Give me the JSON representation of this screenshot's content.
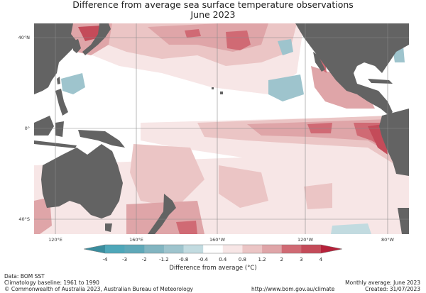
{
  "title": {
    "line1": "Difference from average sea surface temperature observations",
    "line2": "June 2023"
  },
  "map": {
    "region": "Pacific Ocean",
    "land_color": "#636363",
    "gridline_color": "#8a8a8a",
    "lat_labels": [
      "40°N",
      "0°",
      "40°S"
    ],
    "lon_labels": [
      "120°E",
      "160°E",
      "160°W",
      "120°W",
      "80°W"
    ],
    "lat_values": [
      40,
      0,
      -40
    ],
    "lon_values": [
      120,
      160,
      200,
      240,
      280
    ],
    "extent": {
      "lon_min": 110,
      "lon_max": 290,
      "lat_min": -47,
      "lat_max": 47
    },
    "features": [
      {
        "name": "el-nino-equatorial-warm-tongue",
        "anomaly_range": [
          1.2,
          4
        ],
        "lon": [
          200,
          282
        ],
        "lat": [
          -8,
          3
        ]
      },
      {
        "name": "peru-coast-warm-anomaly",
        "anomaly_range": [
          2,
          4
        ],
        "lon": [
          268,
          282
        ],
        "lat": [
          -10,
          2
        ]
      },
      {
        "name": "north-pacific-warm-band",
        "anomaly_range": [
          0.4,
          3
        ],
        "lon": [
          140,
          235
        ],
        "lat": [
          30,
          47
        ]
      },
      {
        "name": "sea-of-japan-warm",
        "anomaly_range": [
          2,
          4
        ],
        "lon": [
          128,
          145
        ],
        "lat": [
          36,
          45
        ]
      },
      {
        "name": "west-pacific-cool-patch",
        "anomaly_range": [
          -1.2,
          -0.4
        ],
        "lon": [
          128,
          140
        ],
        "lat": [
          18,
          24
        ]
      },
      {
        "name": "northeast-pacific-cool-patch",
        "anomaly_range": [
          -1.2,
          -0.4
        ],
        "lon": [
          225,
          245
        ],
        "lat": [
          15,
          25
        ]
      },
      {
        "name": "baja-california-warm",
        "anomaly_range": [
          2,
          3
        ],
        "lon": [
          245,
          252
        ],
        "lat": [
          22,
          32
        ]
      },
      {
        "name": "tasman-sea-warm",
        "anomaly_range": [
          0.8,
          3
        ],
        "lon": [
          150,
          185
        ],
        "lat": [
          -47,
          -30
        ]
      },
      {
        "name": "southwest-pacific-warm-band",
        "anomaly_range": [
          0.4,
          1.2
        ],
        "lon": [
          155,
          220
        ],
        "lat": [
          -30,
          -5
        ]
      }
    ]
  },
  "colorbar": {
    "label": "Difference from average (°C)",
    "ticks": [
      "-4",
      "-3",
      "-2",
      "-1.2",
      "-0.8",
      "-0.4",
      "0.4",
      "0.8",
      "1.2",
      "2",
      "3",
      "4"
    ],
    "colors": [
      "#3a8d9e",
      "#4ea7b9",
      "#5fa8b8",
      "#82b5c1",
      "#9ec4cd",
      "#c2dbe0",
      "#ffffff",
      "#f7e6e6",
      "#ebc5c5",
      "#dfa5a8",
      "#d06a74",
      "#c44b59",
      "#b5213a"
    ]
  },
  "footer": {
    "data": "Data: BOM SST",
    "baseline": "Climatology baseline: 1961 to 1990",
    "copyright": "© Commonwealth of Australia 2023, Australian Bureau of Meteorology",
    "url": "http://www.bom.gov.au/climate",
    "monthly": "Monthly average: June 2023",
    "created": "Created: 31/07/2023"
  }
}
